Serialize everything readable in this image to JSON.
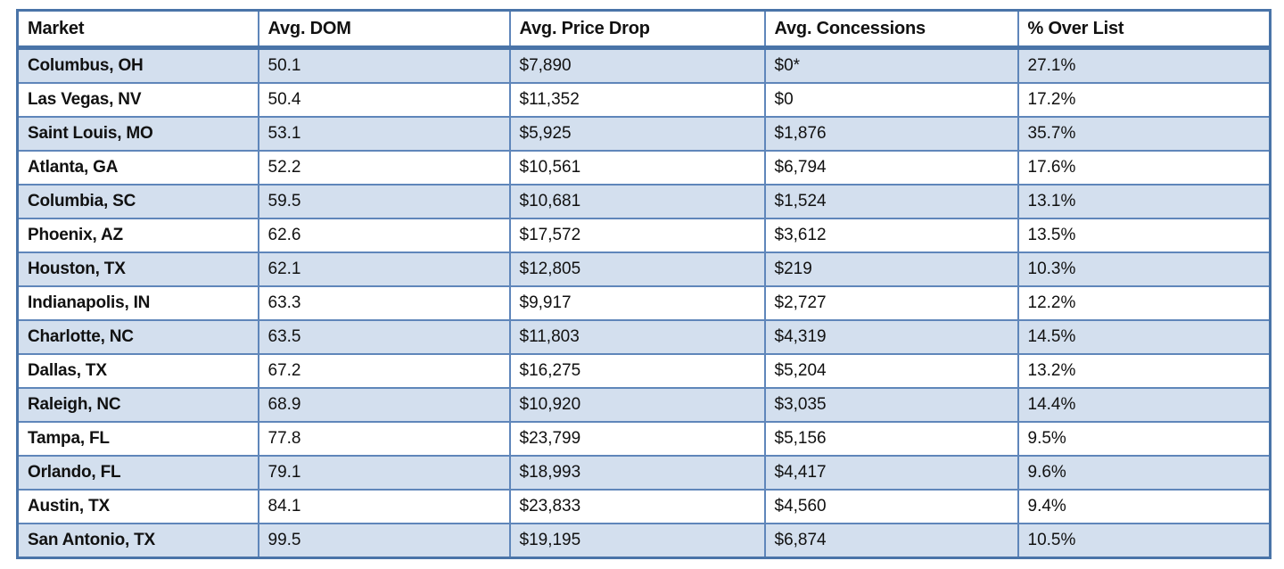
{
  "chart_data": {
    "type": "table",
    "title": "",
    "columns": [
      "Market",
      "Avg. DOM",
      "Avg. Price Drop",
      "Avg. Concessions",
      "% Over List"
    ],
    "rows": [
      [
        "Columbus, OH",
        "50.1",
        "$7,890",
        "$0*",
        "27.1%"
      ],
      [
        "Las Vegas, NV",
        "50.4",
        "$11,352",
        "$0",
        "17.2%"
      ],
      [
        "Saint Louis, MO",
        "53.1",
        "$5,925",
        "$1,876",
        "35.7%"
      ],
      [
        "Atlanta, GA",
        "52.2",
        "$10,561",
        "$6,794",
        "17.6%"
      ],
      [
        "Columbia, SC",
        "59.5",
        "$10,681",
        "$1,524",
        "13.1%"
      ],
      [
        "Phoenix, AZ",
        "62.6",
        "$17,572",
        "$3,612",
        "13.5%"
      ],
      [
        "Houston, TX",
        "62.1",
        "$12,805",
        "$219",
        "10.3%"
      ],
      [
        "Indianapolis, IN",
        "63.3",
        "$9,917",
        "$2,727",
        "12.2%"
      ],
      [
        "Charlotte, NC",
        "63.5",
        "$11,803",
        "$4,319",
        "14.5%"
      ],
      [
        "Dallas, TX",
        "67.2",
        "$16,275",
        "$5,204",
        "13.2%"
      ],
      [
        "Raleigh, NC",
        "68.9",
        "$10,920",
        "$3,035",
        "14.4%"
      ],
      [
        "Tampa, FL",
        "77.8",
        "$23,799",
        "$5,156",
        "9.5%"
      ],
      [
        "Orlando, FL",
        "79.1",
        "$18,993",
        "$4,417",
        "9.6%"
      ],
      [
        "Austin, TX",
        "84.1",
        "$23,833",
        "$4,560",
        "9.4%"
      ],
      [
        "San Antonio, TX",
        "99.5",
        "$19,195",
        "$6,874",
        "10.5%"
      ]
    ],
    "banding": "odd rows shaded, starting with first data row",
    "layout": "header row white with thick rule below; full blue grid borders; all cells left-aligned"
  },
  "colors": {
    "border": "#5f86ba",
    "border_dark": "#4a74a8",
    "band_fill": "#d3dfee",
    "header_bg": "#ffffff",
    "text": "#111111"
  }
}
